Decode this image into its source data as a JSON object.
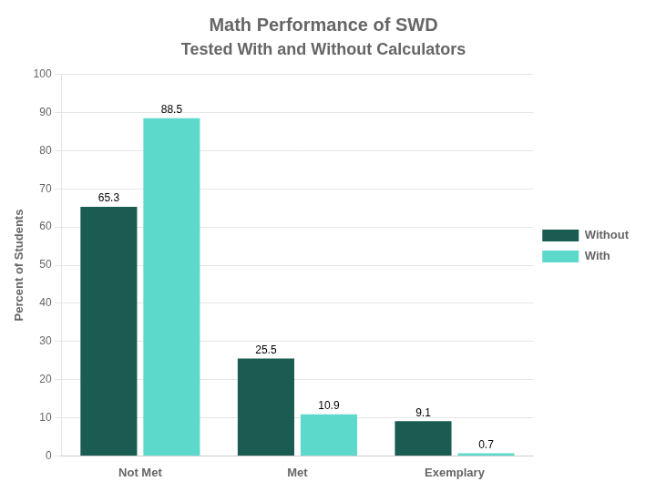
{
  "chart_data": {
    "type": "bar",
    "title": "Math Performance of SWD",
    "subtitle": "Tested With and Without Calculators",
    "categories": [
      "Not Met",
      "Met",
      "Exemplary"
    ],
    "series": [
      {
        "name": "Without",
        "color": "#1a5c52",
        "values": [
          65.3,
          25.5,
          9.1
        ]
      },
      {
        "name": "With",
        "color": "#5dd9cc",
        "values": [
          88.5,
          10.9,
          0.7
        ]
      }
    ],
    "ylabel": "Percent of Students",
    "ylim": [
      0,
      100
    ],
    "yticks": [
      0,
      10,
      20,
      30,
      40,
      50,
      60,
      70,
      80,
      90,
      100
    ],
    "grid": true,
    "legend": "right",
    "data_labels": true
  }
}
